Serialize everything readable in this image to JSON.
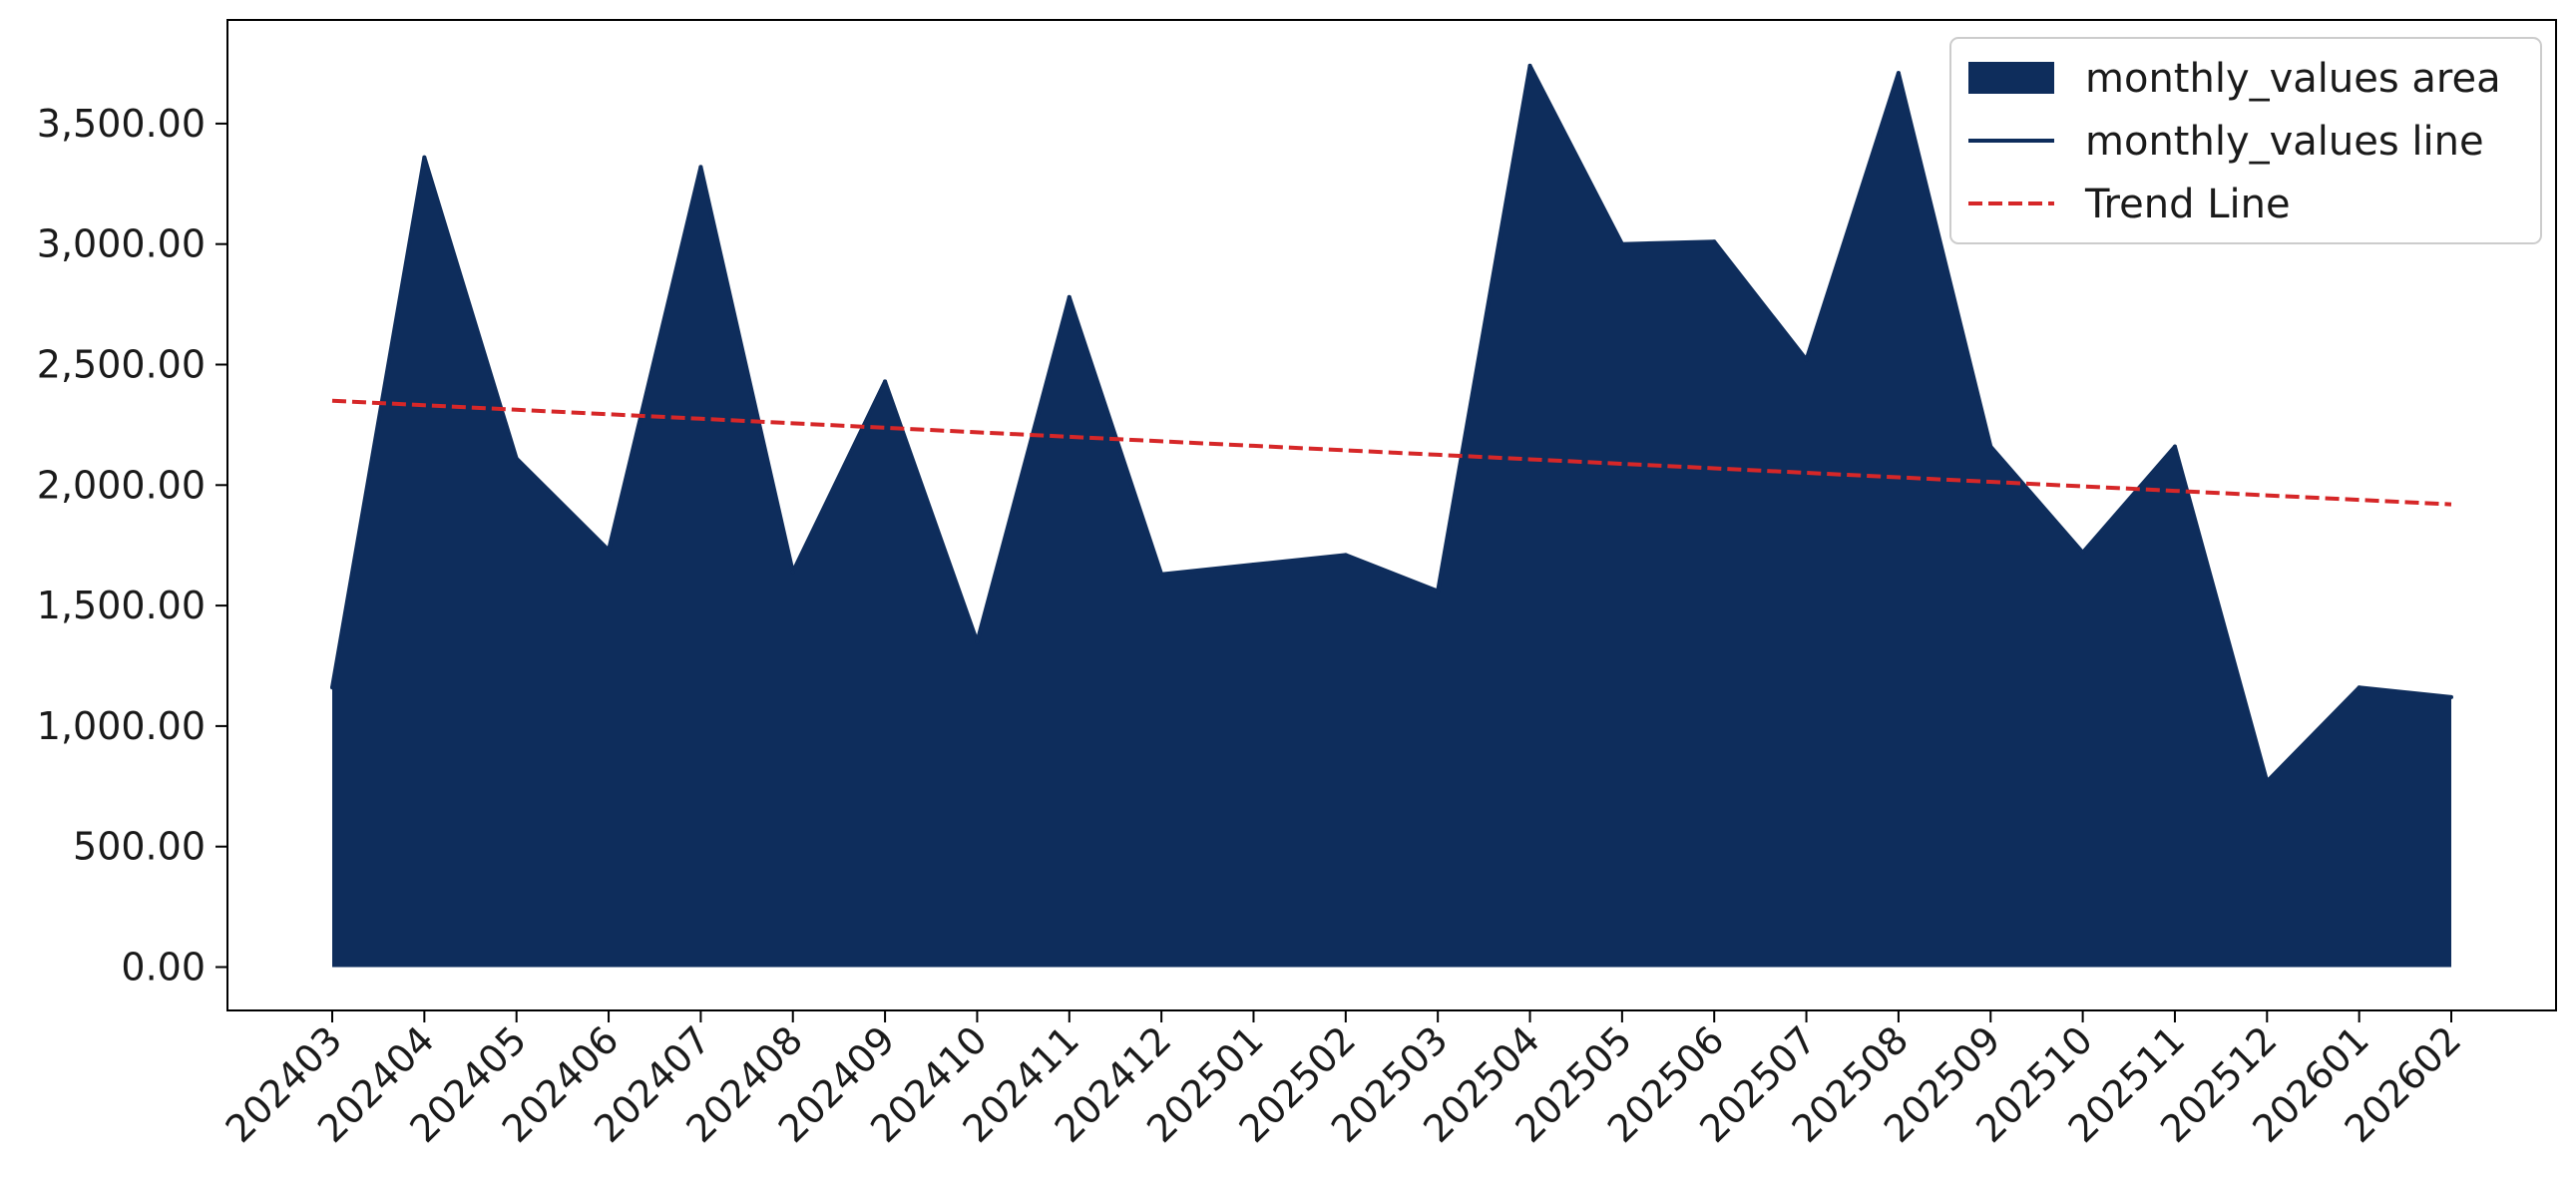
{
  "chart_data": {
    "type": "area",
    "categories": [
      "202403",
      "202404",
      "202405",
      "202406",
      "202407",
      "202408",
      "202409",
      "202410",
      "202411",
      "202412",
      "202501",
      "202502",
      "202503",
      "202504",
      "202505",
      "202506",
      "202507",
      "202508",
      "202509",
      "202510",
      "202511",
      "202512",
      "202601",
      "202602"
    ],
    "series": [
      {
        "name": "monthly_values area",
        "kind": "area",
        "values": [
          1160,
          3360,
          2110,
          1730,
          3320,
          1640,
          2430,
          1350,
          2780,
          1630,
          1670,
          1710,
          1560,
          3740,
          3000,
          3010,
          2520,
          3710,
          2160,
          1720,
          2160,
          770,
          1160,
          1120
        ]
      },
      {
        "name": "monthly_values line",
        "kind": "line",
        "values": [
          1160,
          3360,
          2110,
          1730,
          3320,
          1640,
          2430,
          1350,
          2780,
          1630,
          1670,
          1710,
          1560,
          3740,
          3000,
          3010,
          2520,
          3710,
          2160,
          1720,
          2160,
          770,
          1160,
          1120
        ]
      },
      {
        "name": "Trend Line",
        "kind": "trend",
        "values": [
          2350,
          2331.3,
          2312.6,
          2293.9,
          2275.2,
          2256.5,
          2237.8,
          2219.1,
          2200.4,
          2181.7,
          2163.0,
          2144.3,
          2125.7,
          2107.0,
          2088.3,
          2069.6,
          2050.9,
          2032.2,
          2013.5,
          1994.8,
          1976.1,
          1957.4,
          1938.7,
          1920.0
        ]
      }
    ],
    "yticks": [
      "0.00",
      "500.00",
      "1,000.00",
      "1,500.00",
      "2,000.00",
      "2,500.00",
      "3,000.00",
      "3,500.00"
    ],
    "ytick_values": [
      0,
      500,
      1000,
      1500,
      2000,
      2500,
      3000,
      3500
    ],
    "ylim": [
      -180,
      3930
    ],
    "title": "",
    "xlabel": "",
    "ylabel": "",
    "grid": false,
    "legend_position": "top-right",
    "colors": {
      "area": "#0e2d5c",
      "line": "#0e2d5c",
      "trend": "#d62728"
    }
  }
}
